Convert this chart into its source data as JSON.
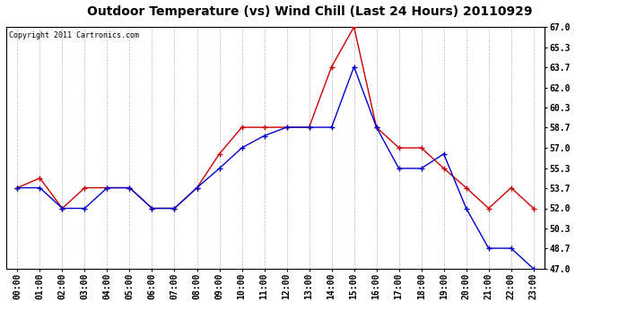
{
  "title": "Outdoor Temperature (vs) Wind Chill (Last 24 Hours) 20110929",
  "copyright_text": "Copyright 2011 Cartronics.com",
  "hours": [
    "00:00",
    "01:00",
    "02:00",
    "03:00",
    "04:00",
    "05:00",
    "06:00",
    "07:00",
    "08:00",
    "09:00",
    "10:00",
    "11:00",
    "12:00",
    "13:00",
    "14:00",
    "15:00",
    "16:00",
    "17:00",
    "18:00",
    "19:00",
    "20:00",
    "21:00",
    "22:00",
    "23:00"
  ],
  "temp": [
    53.7,
    54.5,
    52.0,
    53.7,
    53.7,
    53.7,
    52.0,
    52.0,
    53.7,
    56.5,
    58.7,
    58.7,
    58.7,
    58.7,
    63.7,
    67.0,
    58.7,
    57.0,
    57.0,
    55.3,
    53.7,
    52.0,
    53.7,
    52.0
  ],
  "windchill": [
    53.7,
    53.7,
    52.0,
    52.0,
    53.7,
    53.7,
    52.0,
    52.0,
    53.7,
    55.3,
    57.0,
    58.0,
    58.7,
    58.7,
    58.7,
    63.7,
    58.7,
    55.3,
    55.3,
    56.5,
    52.0,
    48.7,
    48.7,
    47.0
  ],
  "temp_color": "#cc0000",
  "windchill_color": "#0000cc",
  "bg_color": "#ffffff",
  "grid_color": "#bbbbbb",
  "title_fontsize": 10,
  "copyright_fontsize": 6,
  "tick_fontsize": 7,
  "ylim_min": 47.0,
  "ylim_max": 67.0,
  "yticks": [
    47.0,
    48.7,
    50.3,
    52.0,
    53.7,
    55.3,
    57.0,
    58.7,
    60.3,
    62.0,
    63.7,
    65.3,
    67.0
  ]
}
